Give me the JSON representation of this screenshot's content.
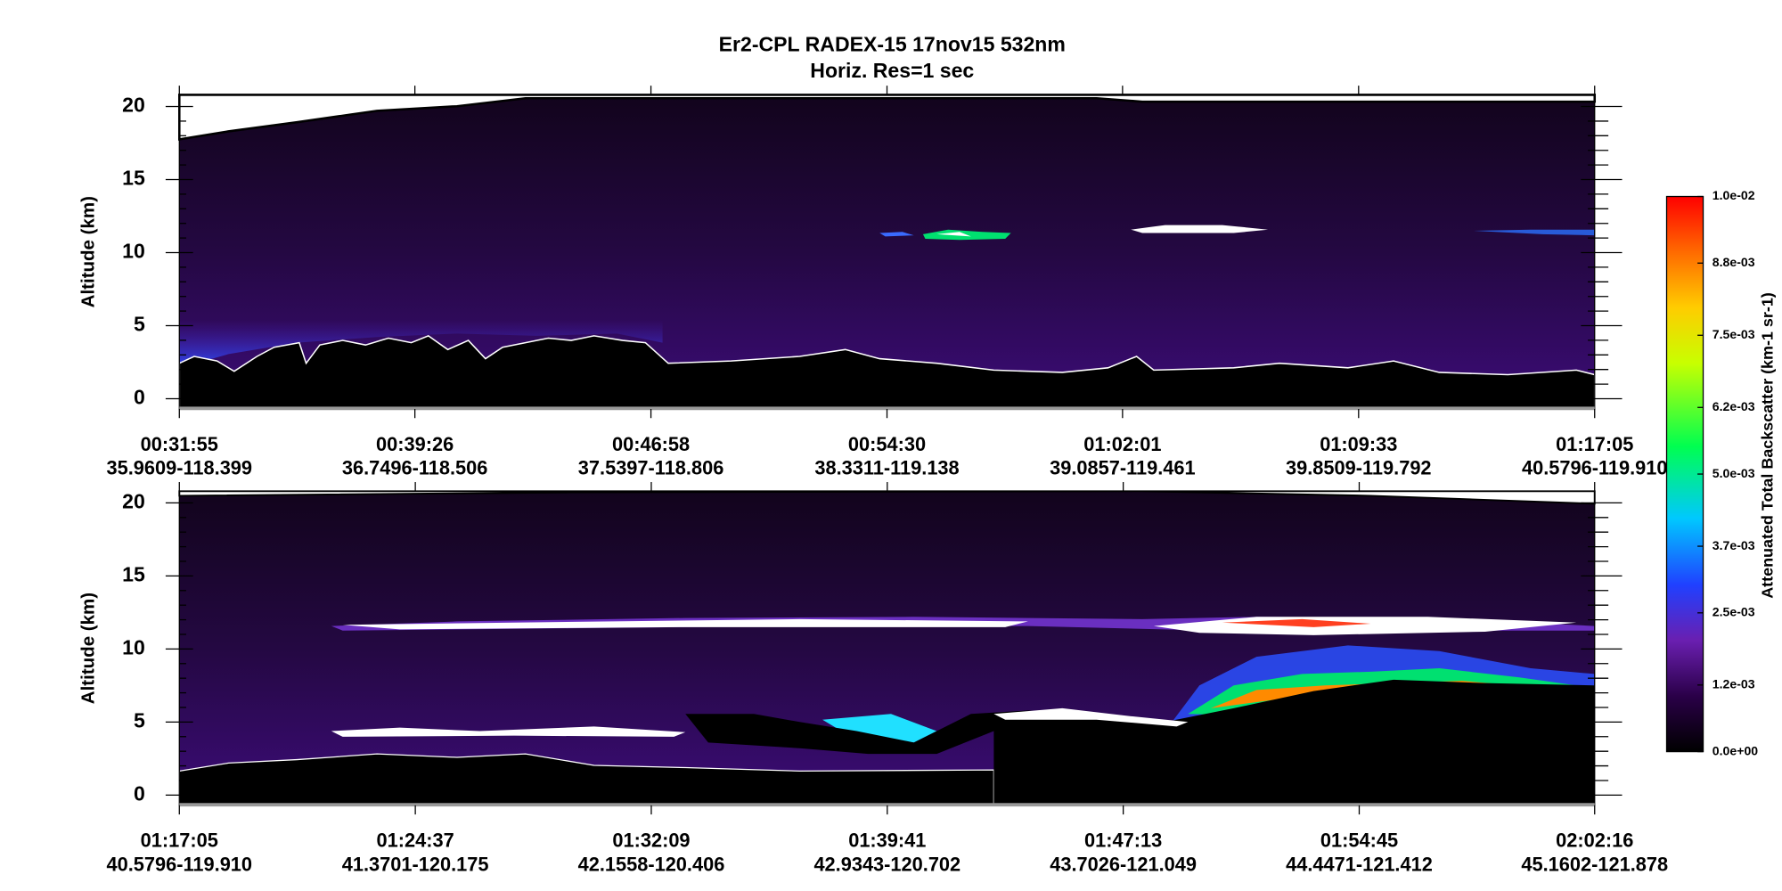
{
  "title": "Er2-CPL  RADEX-15  17nov15  532nm",
  "subtitle": "Horiz. Res=1 sec",
  "colorbar": {
    "label": "Attenuated Total Backscatter (km-1 sr-1)",
    "lim": [
      0,
      0.01
    ],
    "ticks": [
      {
        "value": 0,
        "label": "0.0e+00"
      },
      {
        "value": 0.0012,
        "label": "1.2e-03"
      },
      {
        "value": 0.0025,
        "label": "2.5e-03"
      },
      {
        "value": 0.0037,
        "label": "3.7e-03"
      },
      {
        "value": 0.005,
        "label": "5.0e-03"
      },
      {
        "value": 0.0062,
        "label": "6.2e-03"
      },
      {
        "value": 0.0075,
        "label": "7.5e-03"
      },
      {
        "value": 0.0088,
        "label": "8.8e-03"
      },
      {
        "value": 0.01,
        "label": "1.0e-02"
      }
    ]
  },
  "chart_data": [
    {
      "type": "heatmap",
      "ylabel": "Altitude (km)",
      "ylim": [
        -0.7,
        20.8
      ],
      "yticks": [
        0,
        5,
        10,
        15,
        20
      ],
      "xlim": [
        1915,
        4625
      ],
      "xticks": [
        {
          "value": 1915,
          "label": "00:31:55",
          "location": "35.9609-118.399"
        },
        {
          "value": 2366,
          "label": "00:39:26",
          "location": "36.7496-118.506"
        },
        {
          "value": 2818,
          "label": "00:46:58",
          "location": "37.5397-118.806"
        },
        {
          "value": 3270,
          "label": "00:54:30",
          "location": "38.3311-119.138"
        },
        {
          "value": 3721,
          "label": "01:02:01",
          "location": "39.0857-119.461"
        },
        {
          "value": 4173,
          "label": "01:09:33",
          "location": "39.8509-119.792"
        },
        {
          "value": 4625,
          "label": "01:17:05",
          "location": "40.5796-119.910"
        }
      ]
    },
    {
      "type": "heatmap",
      "ylabel": "Altitude (km)",
      "ylim": [
        -0.7,
        20.8
      ],
      "yticks": [
        0,
        5,
        10,
        15,
        20
      ],
      "xlim": [
        4625,
        7336
      ],
      "xticks": [
        {
          "value": 4625,
          "label": "01:17:05",
          "location": "40.5796-119.910"
        },
        {
          "value": 5077,
          "label": "01:24:37",
          "location": "41.3701-120.175"
        },
        {
          "value": 5529,
          "label": "01:32:09",
          "location": "42.1558-120.406"
        },
        {
          "value": 5981,
          "label": "01:39:41",
          "location": "42.9343-120.702"
        },
        {
          "value": 6433,
          "label": "01:47:13",
          "location": "43.7026-121.049"
        },
        {
          "value": 6885,
          "label": "01:54:45",
          "location": "44.4471-121.412"
        },
        {
          "value": 7336,
          "label": "02:02:16",
          "location": "45.1602-121.878"
        }
      ]
    }
  ]
}
